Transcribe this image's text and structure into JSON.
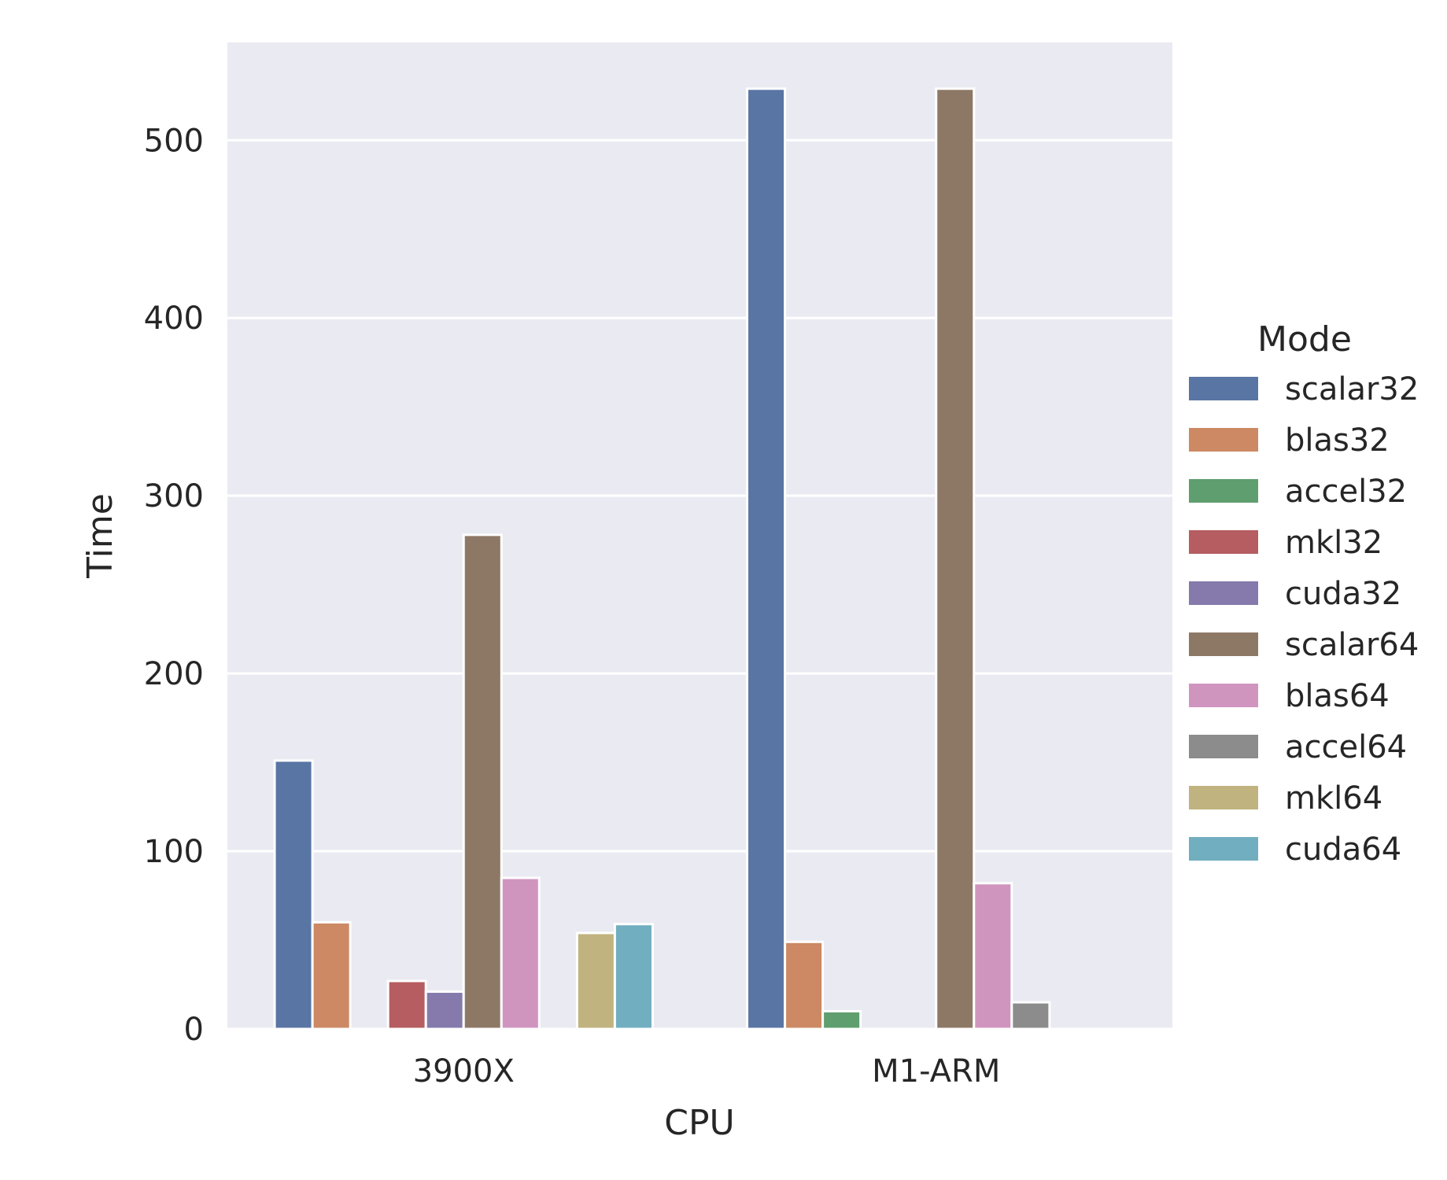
{
  "chart_data": {
    "type": "bar",
    "xlabel": "CPU",
    "ylabel": "Time",
    "categories": [
      "3900X",
      "M1-ARM"
    ],
    "ylim": [
      0,
      555
    ],
    "yticks": [
      0,
      100,
      200,
      300,
      400,
      500
    ],
    "grid": true,
    "legend": {
      "title": "Mode",
      "placement": "right"
    },
    "series": [
      {
        "name": "scalar32",
        "color": "#5975a4",
        "values": [
          151,
          529
        ]
      },
      {
        "name": "blas32",
        "color": "#cc8963",
        "values": [
          60,
          49
        ]
      },
      {
        "name": "accel32",
        "color": "#5f9e6e",
        "values": [
          null,
          10
        ]
      },
      {
        "name": "mkl32",
        "color": "#b55d60",
        "values": [
          27,
          null
        ]
      },
      {
        "name": "cuda32",
        "color": "#857aab",
        "values": [
          21,
          null
        ]
      },
      {
        "name": "scalar64",
        "color": "#8d7866",
        "values": [
          278,
          529
        ]
      },
      {
        "name": "blas64",
        "color": "#d095bf",
        "values": [
          85,
          82
        ]
      },
      {
        "name": "accel64",
        "color": "#8c8c8c",
        "values": [
          null,
          15
        ]
      },
      {
        "name": "mkl64",
        "color": "#c1b37f",
        "values": [
          54,
          null
        ]
      },
      {
        "name": "cuda64",
        "color": "#71aec0",
        "values": [
          59,
          null
        ]
      }
    ]
  }
}
